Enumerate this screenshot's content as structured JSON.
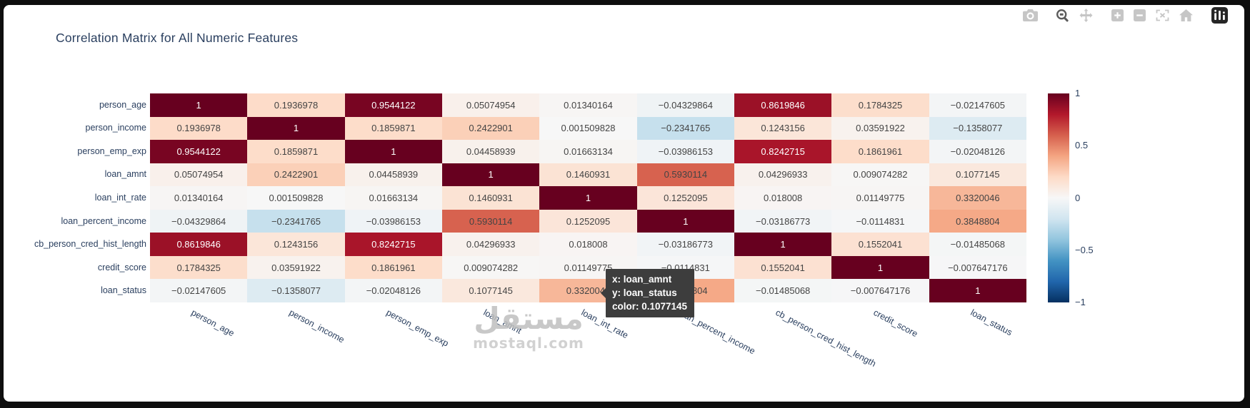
{
  "header": {
    "title": "Correlation Matrix for All Numeric Features"
  },
  "modebar": {
    "buttons": [
      {
        "icon": "camera-icon",
        "name": "download-plot-button",
        "active": false,
        "group_start": false
      },
      {
        "icon": "zoom-icon",
        "name": "zoom-button",
        "active": true,
        "group_start": true
      },
      {
        "icon": "pan-icon",
        "name": "pan-button",
        "active": false,
        "group_start": false
      },
      {
        "icon": "zoom-in-icon",
        "name": "zoom-in-button",
        "active": false,
        "group_start": true
      },
      {
        "icon": "zoom-out-icon",
        "name": "zoom-out-button",
        "active": false,
        "group_start": false
      },
      {
        "icon": "autoscale-icon",
        "name": "autoscale-button",
        "active": false,
        "group_start": false
      },
      {
        "icon": "home-icon",
        "name": "reset-axes-button",
        "active": false,
        "group_start": false
      },
      {
        "icon": "plotly-logo",
        "name": "plotly-logo-button",
        "active": false,
        "group_start": true
      }
    ]
  },
  "chart_data": {
    "type": "heatmap",
    "title": "Correlation Matrix for All Numeric Features",
    "x": [
      "person_age",
      "person_income",
      "person_emp_exp",
      "loan_amnt",
      "loan_int_rate",
      "loan_percent_income",
      "cb_person_cred_hist_length",
      "credit_score",
      "loan_status"
    ],
    "y": [
      "person_age",
      "person_income",
      "person_emp_exp",
      "loan_amnt",
      "loan_int_rate",
      "loan_percent_income",
      "cb_person_cred_hist_length",
      "credit_score",
      "loan_status"
    ],
    "z": [
      [
        1,
        0.1936978,
        0.9544122,
        0.05074954,
        0.01340164,
        -0.04329864,
        0.8619846,
        0.1784325,
        -0.02147605
      ],
      [
        0.1936978,
        1,
        0.1859871,
        0.2422901,
        0.001509828,
        -0.2341765,
        0.1243156,
        0.03591922,
        -0.1358077
      ],
      [
        0.9544122,
        0.1859871,
        1,
        0.04458939,
        0.01663134,
        -0.03986153,
        0.8242715,
        0.1861961,
        -0.02048126
      ],
      [
        0.05074954,
        0.2422901,
        0.04458939,
        1,
        0.1460931,
        0.5930114,
        0.04296933,
        0.009074282,
        0.1077145
      ],
      [
        0.01340164,
        0.001509828,
        0.01663134,
        0.1460931,
        1,
        0.1252095,
        0.018008,
        0.01149775,
        0.3320046
      ],
      [
        -0.04329864,
        -0.2341765,
        -0.03986153,
        0.5930114,
        0.1252095,
        1,
        -0.03186773,
        -0.0114831,
        0.3848804
      ],
      [
        0.8619846,
        0.1243156,
        0.8242715,
        0.04296933,
        0.018008,
        -0.03186773,
        1,
        0.1552041,
        -0.01485068
      ],
      [
        0.1784325,
        0.03591922,
        0.1861961,
        0.009074282,
        0.01149775,
        -0.0114831,
        0.1552041,
        1,
        -0.007647176
      ],
      [
        -0.02147605,
        -0.1358077,
        -0.02048126,
        0.1077145,
        0.3320046,
        0.3848804,
        -0.01485068,
        -0.007647176,
        1
      ]
    ],
    "zmin": -1,
    "zmax": 1,
    "colorscale": "RdBu_r",
    "colorbar_ticks": [
      "1",
      "0.5",
      "0",
      "−0.5",
      "−1"
    ],
    "colorbar_tick_values": [
      1,
      0.5,
      0,
      -0.5,
      -1
    ],
    "legend_position": "right",
    "grid": false
  },
  "tooltip": {
    "x_line": "x: loan_amnt",
    "y_line": "y: loan_status",
    "color_line": "color: 0.1077145"
  },
  "watermark": {
    "arabic": "مستقل",
    "domain": "mostaql.com"
  },
  "colors": {
    "high_corr": "#67001f",
    "low_corr": "#053061",
    "axis_label": "#2a3f5f",
    "tooltip_bg": "#3d3d3d"
  }
}
